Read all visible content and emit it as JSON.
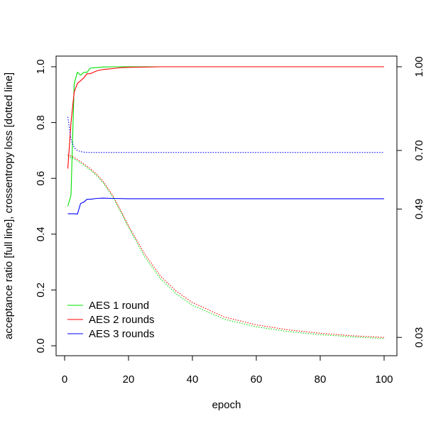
{
  "chart_data": {
    "type": "line",
    "xlabel": "epoch",
    "ylabel": "acceptance ratio [full line], crossentropy loss [dotted line]",
    "xlim": [
      0,
      100
    ],
    "ylim": [
      0,
      1
    ],
    "x_ticks": [
      "0",
      "20",
      "40",
      "60",
      "80",
      "100"
    ],
    "y_ticks": [
      "0.0",
      "0.2",
      "0.4",
      "0.6",
      "0.8",
      "1.0"
    ],
    "right_ticks": [
      {
        "value": 0.03,
        "label": "0.03"
      },
      {
        "value": 0.49,
        "label": "0.49"
      },
      {
        "value": 0.7,
        "label": "0.70"
      },
      {
        "value": 1.0,
        "label": "1.00"
      }
    ],
    "grid": false,
    "legend": "bottom-left",
    "series": [
      {
        "name": "AES 1 round",
        "color": "#00e000",
        "acceptance": {
          "x": [
            1,
            2,
            3,
            4,
            5,
            6,
            7,
            8,
            10,
            12,
            15,
            20,
            30,
            40,
            60,
            80,
            100
          ],
          "y": [
            0.5,
            0.54,
            0.94,
            0.98,
            0.97,
            0.98,
            0.98,
            0.995,
            0.997,
            0.999,
            1.0,
            1.0,
            1.0,
            1.0,
            1.0,
            1.0,
            1.0
          ]
        },
        "loss": {
          "x": [
            1,
            3,
            5,
            8,
            10,
            12,
            15,
            18,
            20,
            25,
            30,
            35,
            40,
            50,
            60,
            70,
            80,
            90,
            100
          ],
          "y": [
            0.68,
            0.67,
            0.655,
            0.63,
            0.61,
            0.585,
            0.535,
            0.47,
            0.425,
            0.32,
            0.24,
            0.185,
            0.145,
            0.095,
            0.068,
            0.051,
            0.04,
            0.032,
            0.026
          ]
        }
      },
      {
        "name": "AES 2 rounds",
        "color": "#ff0000",
        "acceptance": {
          "x": [
            1,
            2,
            3,
            4,
            5,
            6,
            7,
            8,
            9,
            10,
            12,
            14,
            16,
            18,
            20,
            25,
            30,
            40,
            60,
            80,
            100
          ],
          "y": [
            0.635,
            0.8,
            0.91,
            0.94,
            0.95,
            0.96,
            0.975,
            0.975,
            0.98,
            0.985,
            0.99,
            0.992,
            0.995,
            0.997,
            0.998,
            0.999,
            1.0,
            1.0,
            1.0,
            1.0,
            1.0
          ]
        },
        "loss": {
          "x": [
            1,
            3,
            5,
            8,
            10,
            12,
            15,
            18,
            20,
            25,
            30,
            35,
            40,
            50,
            60,
            70,
            80,
            90,
            100
          ],
          "y": [
            0.685,
            0.675,
            0.66,
            0.635,
            0.615,
            0.59,
            0.54,
            0.475,
            0.43,
            0.33,
            0.25,
            0.195,
            0.155,
            0.103,
            0.075,
            0.057,
            0.045,
            0.036,
            0.03
          ]
        }
      },
      {
        "name": "AES 3 rounds",
        "color": "#0000ff",
        "acceptance": {
          "x": [
            1,
            2,
            3,
            4,
            5,
            6,
            7,
            8,
            10,
            12,
            15,
            20,
            30,
            40,
            50,
            60,
            70,
            80,
            90,
            100
          ],
          "y": [
            0.473,
            0.473,
            0.473,
            0.472,
            0.51,
            0.515,
            0.525,
            0.525,
            0.528,
            0.529,
            0.528,
            0.527,
            0.527,
            0.527,
            0.527,
            0.527,
            0.527,
            0.527,
            0.527,
            0.527
          ]
        },
        "loss": {
          "x": [
            1,
            2,
            3,
            4,
            5,
            6,
            8,
            10,
            15,
            20,
            40,
            60,
            80,
            100
          ],
          "y": [
            0.82,
            0.74,
            0.71,
            0.7,
            0.696,
            0.694,
            0.693,
            0.693,
            0.693,
            0.693,
            0.693,
            0.693,
            0.693,
            0.693
          ]
        }
      }
    ]
  }
}
